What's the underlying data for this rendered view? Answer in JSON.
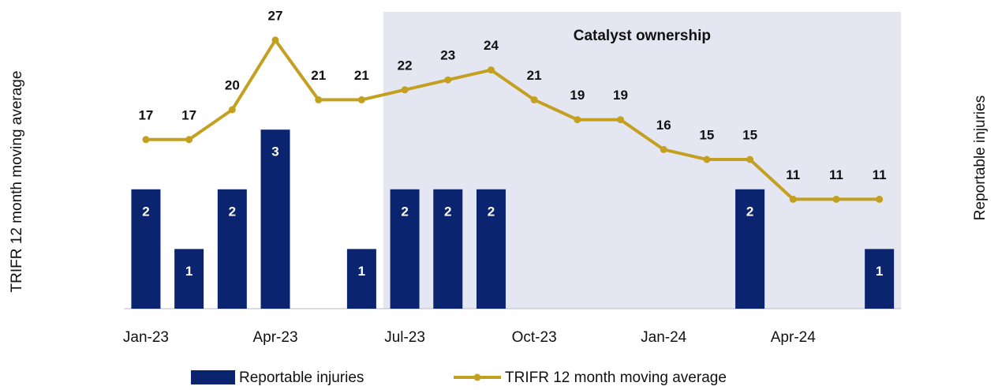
{
  "chart_data": {
    "type": "bar-line",
    "y_label": "TRIFR 12 month moving average",
    "y2_label": "Reportable injuries",
    "annotation": "Catalyst ownership",
    "shaded_from": "Jul-23",
    "categories": [
      "Jan-23",
      null,
      null,
      "Apr-23",
      null,
      null,
      "Jul-23",
      null,
      null,
      "Oct-23",
      null,
      null,
      "Jan-24",
      null,
      null,
      "Apr-24",
      null,
      null
    ],
    "ylim": [
      0,
      30
    ],
    "y2lim": [
      0,
      5
    ],
    "legend": "bottom",
    "series": [
      {
        "name": "Reportable injuries",
        "type": "bar",
        "axis": "y2",
        "color": "#0b2470",
        "values": [
          2,
          1,
          2,
          3,
          0,
          1,
          2,
          2,
          2,
          0,
          0,
          0,
          0,
          0,
          2,
          0,
          0,
          1
        ]
      },
      {
        "name": "TRIFR 12 month moving average",
        "type": "line",
        "color": "#c4a020",
        "values": [
          17,
          17,
          20,
          27,
          21,
          21,
          22,
          23,
          24,
          21,
          19,
          19,
          16,
          15,
          15,
          11,
          11,
          11
        ]
      }
    ]
  }
}
